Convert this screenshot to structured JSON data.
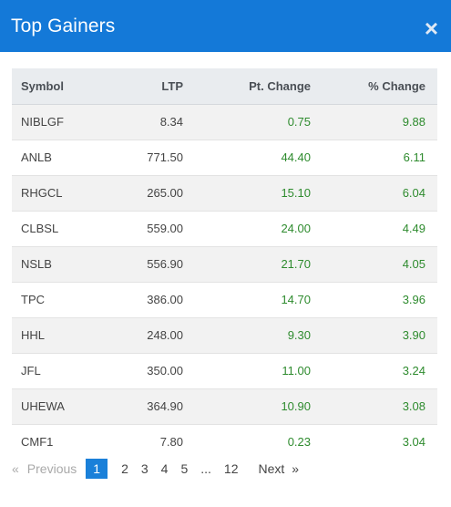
{
  "header": {
    "title": "Top Gainers",
    "close_glyph": "×",
    "close_icon": "close-icon"
  },
  "columns": {
    "symbol": "Symbol",
    "ltp": "LTP",
    "pt_change": "Pt. Change",
    "pct_change": "% Change"
  },
  "rows": [
    {
      "symbol": "NIBLGF",
      "ltp": "8.34",
      "pt": "0.75",
      "pct": "9.88"
    },
    {
      "symbol": "ANLB",
      "ltp": "771.50",
      "pt": "44.40",
      "pct": "6.11"
    },
    {
      "symbol": "RHGCL",
      "ltp": "265.00",
      "pt": "15.10",
      "pct": "6.04"
    },
    {
      "symbol": "CLBSL",
      "ltp": "559.00",
      "pt": "24.00",
      "pct": "4.49"
    },
    {
      "symbol": "NSLB",
      "ltp": "556.90",
      "pt": "21.70",
      "pct": "4.05"
    },
    {
      "symbol": "TPC",
      "ltp": "386.00",
      "pt": "14.70",
      "pct": "3.96"
    },
    {
      "symbol": "HHL",
      "ltp": "248.00",
      "pt": "9.30",
      "pct": "3.90"
    },
    {
      "symbol": "JFL",
      "ltp": "350.00",
      "pt": "11.00",
      "pct": "3.24"
    },
    {
      "symbol": "UHEWA",
      "ltp": "364.90",
      "pt": "10.90",
      "pct": "3.08"
    },
    {
      "symbol": "CMF1",
      "ltp": "7.80",
      "pt": "0.23",
      "pct": "3.04"
    }
  ],
  "pagination": {
    "prev_arrow": "«",
    "prev_label": "Previous",
    "pages": [
      "1",
      "2",
      "3",
      "4",
      "5",
      "...",
      "12"
    ],
    "active": "1",
    "next_label": "Next",
    "next_arrow": "»"
  },
  "colors": {
    "header_bg": "#1479d8",
    "gain_text": "#2e8b2e",
    "active_page_bg": "#1a80d9"
  }
}
